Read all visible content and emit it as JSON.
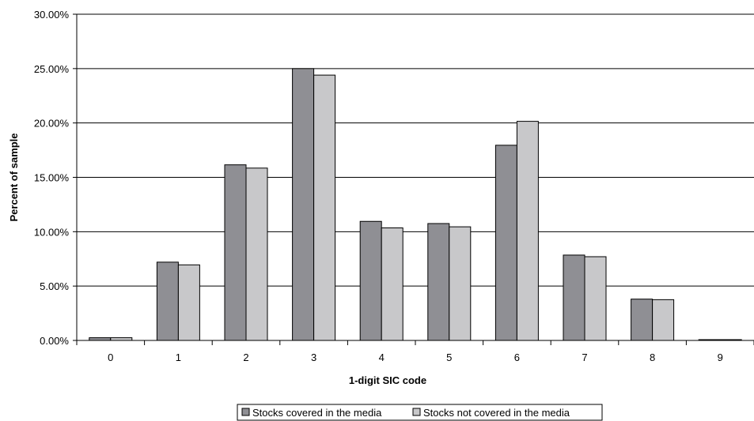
{
  "chart_data": {
    "type": "bar",
    "title": "",
    "xlabel": "1-digit SIC code",
    "ylabel": "Percent of sample",
    "categories": [
      "0",
      "1",
      "2",
      "3",
      "4",
      "5",
      "6",
      "7",
      "8",
      "9"
    ],
    "series": [
      {
        "name": "Stocks covered in the media",
        "color": "#8f8f94",
        "values": [
          0.25,
          7.2,
          16.15,
          25.0,
          10.95,
          10.75,
          17.95,
          7.85,
          3.8,
          0.05
        ]
      },
      {
        "name": "Stocks not covered in the media",
        "color": "#c8c8ca",
        "values": [
          0.25,
          6.95,
          15.85,
          24.4,
          10.35,
          10.45,
          20.15,
          7.7,
          3.75,
          0.05
        ]
      }
    ],
    "ylim": [
      0,
      30
    ],
    "yticks": [
      0,
      5,
      10,
      15,
      20,
      25,
      30
    ],
    "ytick_labels": [
      "0.00%",
      "5.00%",
      "10.00%",
      "15.00%",
      "20.00%",
      "25.00%",
      "30.00%"
    ],
    "grid": true,
    "legend_position": "bottom-center"
  }
}
